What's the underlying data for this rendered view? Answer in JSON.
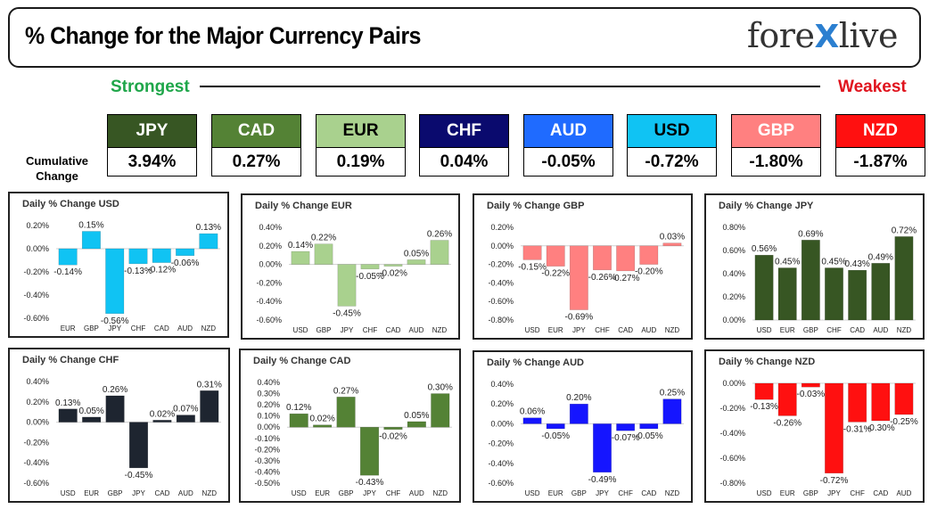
{
  "header": {
    "title": "% Change for the Major Currency Pairs",
    "logo_text_left": "fore",
    "logo_text_x": "X",
    "logo_text_right": "live"
  },
  "labels": {
    "strongest": "Strongest",
    "weakest": "Weakest",
    "cumulative_change": "Cumulative Change"
  },
  "currencies": [
    {
      "code": "JPY",
      "value": "3.94%",
      "bg": "#375623",
      "fg": "#ffffff"
    },
    {
      "code": "CAD",
      "value": "0.27%",
      "bg": "#548235",
      "fg": "#ffffff"
    },
    {
      "code": "EUR",
      "value": "0.19%",
      "bg": "#a9d18e",
      "fg": "#000000"
    },
    {
      "code": "CHF",
      "value": "0.04%",
      "bg": "#0a0a6e",
      "fg": "#ffffff"
    },
    {
      "code": "AUD",
      "value": "-0.05%",
      "bg": "#1f6bff",
      "fg": "#ffffff"
    },
    {
      "code": "USD",
      "value": "-0.72%",
      "bg": "#10c3f3",
      "fg": "#000000"
    },
    {
      "code": "GBP",
      "value": "-1.80%",
      "bg": "#ff8080",
      "fg": "#ffffff"
    },
    {
      "code": "NZD",
      "value": "-1.87%",
      "bg": "#ff1010",
      "fg": "#ffffff"
    }
  ],
  "chart_data": [
    {
      "type": "bar",
      "title": "Daily % Change USD",
      "color": "#10c3f3",
      "categories": [
        "EUR",
        "GBP",
        "JPY",
        "CHF",
        "CAD",
        "AUD",
        "NZD"
      ],
      "values": [
        -0.14,
        0.15,
        -0.56,
        -0.13,
        -0.12,
        -0.06,
        0.13
      ],
      "data_labels": [
        "-0.14%",
        "0.15%",
        "-0.56%",
        "-0.13%",
        "-0.12%",
        "-0.06%",
        "0.13%"
      ],
      "ylim": [
        -0.6,
        0.2
      ],
      "yticks": [
        "0.20%",
        "0.00%",
        "-0.20%",
        "-0.40%",
        "-0.60%"
      ]
    },
    {
      "type": "bar",
      "title": "Daily % Change EUR",
      "color": "#a9d18e",
      "categories": [
        "USD",
        "GBP",
        "JPY",
        "CHF",
        "CAD",
        "AUD",
        "NZD"
      ],
      "values": [
        0.14,
        0.22,
        -0.45,
        -0.05,
        -0.02,
        0.05,
        0.26
      ],
      "data_labels": [
        "0.14%",
        "0.22%",
        "-0.45%",
        "-0.05%",
        "-0.02%",
        "0.05%",
        "0.26%"
      ],
      "ylim": [
        -0.6,
        0.4
      ],
      "yticks": [
        "0.40%",
        "0.20%",
        "0.00%",
        "-0.20%",
        "-0.40%",
        "-0.60%"
      ]
    },
    {
      "type": "bar",
      "title": "Daily % Change GBP",
      "color": "#ff8080",
      "categories": [
        "USD",
        "EUR",
        "JPY",
        "CHF",
        "CAD",
        "AUD",
        "NZD"
      ],
      "values": [
        -0.15,
        -0.22,
        -0.69,
        -0.26,
        -0.27,
        -0.2,
        0.03
      ],
      "data_labels": [
        "-0.15%",
        "-0.22%",
        "-0.69%",
        "-0.26%",
        "-0.27%",
        "-0.20%",
        "0.03%"
      ],
      "ylim": [
        -0.8,
        0.2
      ],
      "yticks": [
        "0.20%",
        "0.00%",
        "-0.20%",
        "-0.40%",
        "-0.60%",
        "-0.80%"
      ]
    },
    {
      "type": "bar",
      "title": "Daily % Change JPY",
      "color": "#375623",
      "categories": [
        "USD",
        "EUR",
        "GBP",
        "CHF",
        "CAD",
        "AUD",
        "NZD"
      ],
      "values": [
        0.56,
        0.45,
        0.69,
        0.45,
        0.43,
        0.49,
        0.72
      ],
      "data_labels": [
        "0.56%",
        "0.45%",
        "0.69%",
        "0.45%",
        "0.43%",
        "0.49%",
        "0.72%"
      ],
      "ylim": [
        0,
        0.8
      ],
      "yticks": [
        "0.80%",
        "0.60%",
        "0.40%",
        "0.20%",
        "0.00%"
      ]
    },
    {
      "type": "bar",
      "title": "Daily % Change CHF",
      "color": "#1e2530",
      "categories": [
        "USD",
        "EUR",
        "GBP",
        "JPY",
        "CAD",
        "AUD",
        "NZD"
      ],
      "values": [
        0.13,
        0.05,
        0.26,
        -0.45,
        0.02,
        0.07,
        0.31
      ],
      "data_labels": [
        "0.13%",
        "0.05%",
        "0.26%",
        "-0.45%",
        "0.02%",
        "0.07%",
        "0.31%"
      ],
      "ylim": [
        -0.6,
        0.4
      ],
      "yticks": [
        "0.40%",
        "0.20%",
        "0.00%",
        "-0.20%",
        "-0.40%",
        "-0.60%"
      ]
    },
    {
      "type": "bar",
      "title": "Daily % Change CAD",
      "color": "#548235",
      "categories": [
        "USD",
        "EUR",
        "GBP",
        "JPY",
        "CHF",
        "AUD",
        "NZD"
      ],
      "values": [
        0.12,
        0.02,
        0.27,
        -0.43,
        -0.02,
        0.05,
        0.3
      ],
      "data_labels": [
        "0.12%",
        "0.02%",
        "0.27%",
        "-0.43%",
        "-0.02%",
        "0.05%",
        "0.30%"
      ],
      "ylim": [
        -0.5,
        0.4
      ],
      "yticks": [
        "0.40%",
        "0.30%",
        "0.20%",
        "0.10%",
        "0.00%",
        "-0.10%",
        "-0.20%",
        "-0.30%",
        "-0.40%",
        "-0.50%"
      ]
    },
    {
      "type": "bar",
      "title": "Daily % Change AUD",
      "color": "#1515ff",
      "categories": [
        "USD",
        "EUR",
        "GBP",
        "JPY",
        "CHF",
        "CAD",
        "NZD"
      ],
      "values": [
        0.06,
        -0.05,
        0.2,
        -0.49,
        -0.07,
        -0.05,
        0.25
      ],
      "data_labels": [
        "0.06%",
        "-0.05%",
        "0.20%",
        "-0.49%",
        "-0.07%",
        "-0.05%",
        "0.25%"
      ],
      "ylim": [
        -0.6,
        0.4
      ],
      "yticks": [
        "0.40%",
        "0.20%",
        "0.00%",
        "-0.20%",
        "-0.40%",
        "-0.60%"
      ]
    },
    {
      "type": "bar",
      "title": "Daily % Change NZD",
      "color": "#ff1010",
      "categories": [
        "USD",
        "EUR",
        "GBP",
        "JPY",
        "CHF",
        "CAD",
        "AUD"
      ],
      "values": [
        -0.13,
        -0.26,
        -0.03,
        -0.72,
        -0.31,
        -0.3,
        -0.25
      ],
      "data_labels": [
        "-0.13%",
        "-0.26%",
        "-0.03%",
        "-0.72%",
        "-0.31%",
        "-0.30%",
        "-0.25%"
      ],
      "ylim": [
        -0.8,
        0
      ],
      "yticks": [
        "0.00%",
        "-0.20%",
        "-0.40%",
        "-0.60%",
        "-0.80%"
      ]
    }
  ]
}
